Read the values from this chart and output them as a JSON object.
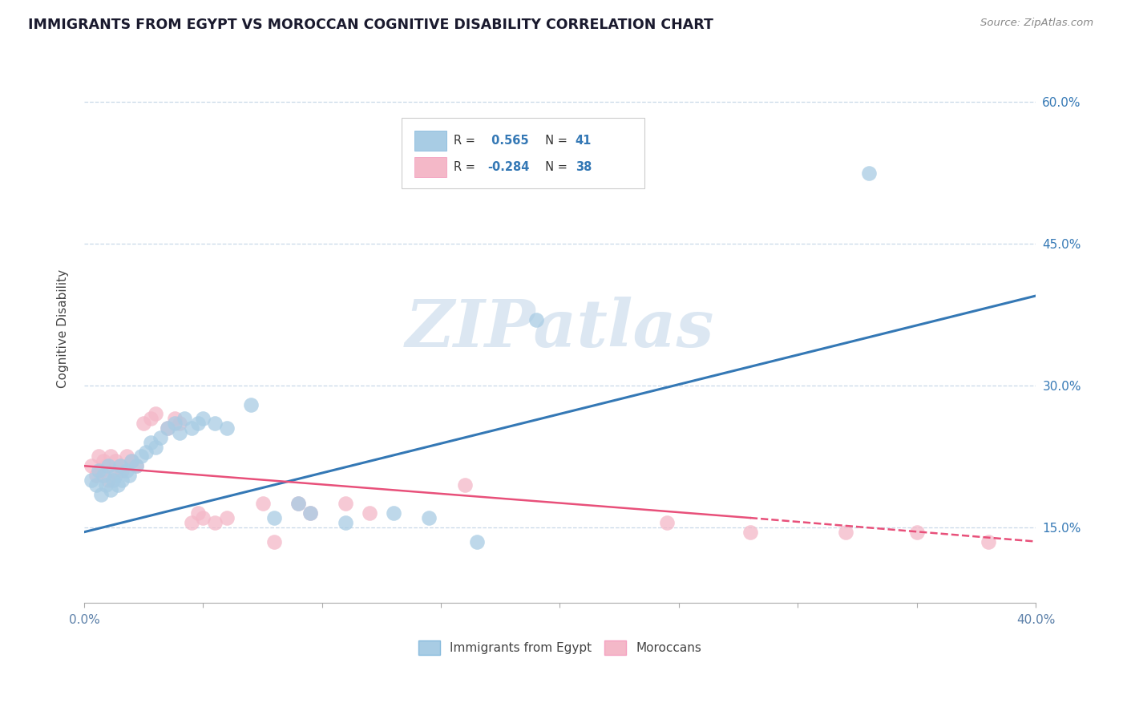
{
  "title": "IMMIGRANTS FROM EGYPT VS MOROCCAN COGNITIVE DISABILITY CORRELATION CHART",
  "source": "Source: ZipAtlas.com",
  "ylabel": "Cognitive Disability",
  "x_min": 0.0,
  "x_max": 0.4,
  "y_min": 0.07,
  "y_max": 0.65,
  "y_ticks": [
    0.15,
    0.3,
    0.45,
    0.6
  ],
  "y_tick_labels": [
    "15.0%",
    "30.0%",
    "45.0%",
    "60.0%"
  ],
  "x_ticks": [
    0.0,
    0.05,
    0.1,
    0.15,
    0.2,
    0.25,
    0.3,
    0.35,
    0.4
  ],
  "x_tick_labels": [
    "0.0%",
    "",
    "",
    "",
    "",
    "",
    "",
    "",
    "40.0%"
  ],
  "blue_color": "#a8cce4",
  "pink_color": "#f4b8c8",
  "blue_line_color": "#3478b5",
  "pink_line_color": "#e8507a",
  "blue_scatter": [
    [
      0.003,
      0.2
    ],
    [
      0.005,
      0.195
    ],
    [
      0.006,
      0.21
    ],
    [
      0.007,
      0.185
    ],
    [
      0.008,
      0.205
    ],
    [
      0.009,
      0.195
    ],
    [
      0.01,
      0.215
    ],
    [
      0.011,
      0.19
    ],
    [
      0.012,
      0.2
    ],
    [
      0.013,
      0.205
    ],
    [
      0.014,
      0.195
    ],
    [
      0.015,
      0.215
    ],
    [
      0.016,
      0.2
    ],
    [
      0.018,
      0.21
    ],
    [
      0.019,
      0.205
    ],
    [
      0.02,
      0.22
    ],
    [
      0.022,
      0.215
    ],
    [
      0.024,
      0.225
    ],
    [
      0.026,
      0.23
    ],
    [
      0.028,
      0.24
    ],
    [
      0.03,
      0.235
    ],
    [
      0.032,
      0.245
    ],
    [
      0.035,
      0.255
    ],
    [
      0.038,
      0.26
    ],
    [
      0.04,
      0.25
    ],
    [
      0.042,
      0.265
    ],
    [
      0.045,
      0.255
    ],
    [
      0.048,
      0.26
    ],
    [
      0.05,
      0.265
    ],
    [
      0.055,
      0.26
    ],
    [
      0.06,
      0.255
    ],
    [
      0.07,
      0.28
    ],
    [
      0.08,
      0.16
    ],
    [
      0.09,
      0.175
    ],
    [
      0.095,
      0.165
    ],
    [
      0.11,
      0.155
    ],
    [
      0.13,
      0.165
    ],
    [
      0.145,
      0.16
    ],
    [
      0.165,
      0.135
    ],
    [
      0.19,
      0.37
    ],
    [
      0.33,
      0.525
    ]
  ],
  "pink_scatter": [
    [
      0.003,
      0.215
    ],
    [
      0.005,
      0.205
    ],
    [
      0.006,
      0.225
    ],
    [
      0.007,
      0.21
    ],
    [
      0.008,
      0.22
    ],
    [
      0.009,
      0.215
    ],
    [
      0.01,
      0.2
    ],
    [
      0.011,
      0.225
    ],
    [
      0.012,
      0.21
    ],
    [
      0.013,
      0.22
    ],
    [
      0.015,
      0.215
    ],
    [
      0.016,
      0.21
    ],
    [
      0.018,
      0.225
    ],
    [
      0.02,
      0.22
    ],
    [
      0.022,
      0.215
    ],
    [
      0.025,
      0.26
    ],
    [
      0.028,
      0.265
    ],
    [
      0.03,
      0.27
    ],
    [
      0.035,
      0.255
    ],
    [
      0.038,
      0.265
    ],
    [
      0.04,
      0.26
    ],
    [
      0.045,
      0.155
    ],
    [
      0.048,
      0.165
    ],
    [
      0.05,
      0.16
    ],
    [
      0.055,
      0.155
    ],
    [
      0.06,
      0.16
    ],
    [
      0.075,
      0.175
    ],
    [
      0.08,
      0.135
    ],
    [
      0.09,
      0.175
    ],
    [
      0.095,
      0.165
    ],
    [
      0.11,
      0.175
    ],
    [
      0.12,
      0.165
    ],
    [
      0.16,
      0.195
    ],
    [
      0.245,
      0.155
    ],
    [
      0.28,
      0.145
    ],
    [
      0.32,
      0.145
    ],
    [
      0.35,
      0.145
    ],
    [
      0.38,
      0.135
    ]
  ],
  "blue_line": [
    [
      0.0,
      0.145
    ],
    [
      0.4,
      0.395
    ]
  ],
  "pink_line_solid": [
    [
      0.0,
      0.215
    ],
    [
      0.28,
      0.16
    ]
  ],
  "pink_line_dashed": [
    [
      0.28,
      0.16
    ],
    [
      0.4,
      0.135
    ]
  ],
  "watermark_text": "ZIPatlas",
  "watermark_color": "#c5d8ea",
  "legend_label1": "Immigrants from Egypt",
  "legend_label2": "Moroccans"
}
